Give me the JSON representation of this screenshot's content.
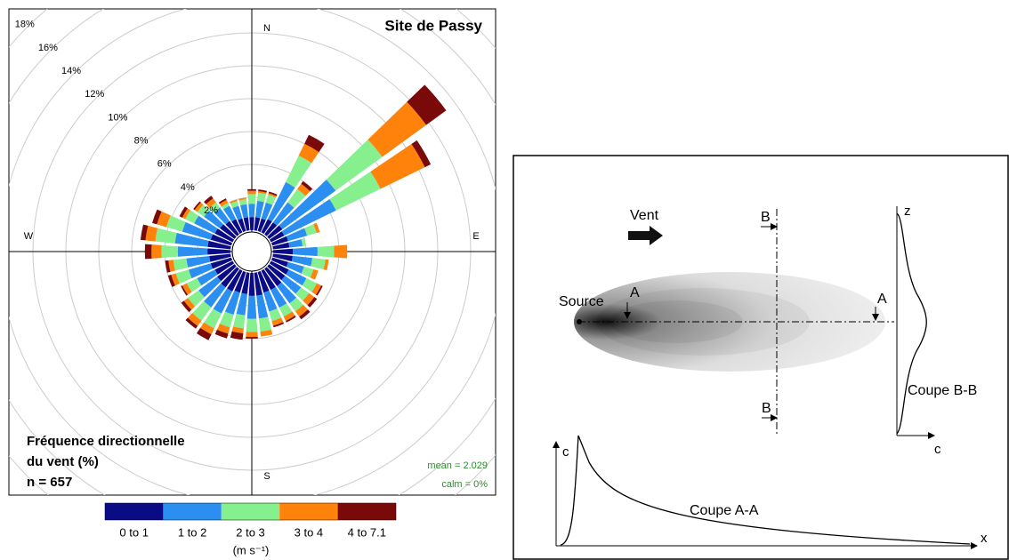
{
  "chart_data": {
    "type": "windrose",
    "title": "Site de Passy",
    "x": [
      0,
      10,
      20,
      30,
      40,
      50,
      60,
      70,
      80,
      90,
      100,
      110,
      120,
      130,
      140,
      150,
      160,
      170,
      180,
      190,
      200,
      210,
      220,
      230,
      240,
      250,
      260,
      270,
      280,
      290,
      300,
      310,
      320,
      330,
      340,
      350
    ],
    "compass_labels": [
      "N",
      "E",
      "S",
      "W"
    ],
    "series": [
      {
        "name": "0 to 1",
        "color": "#0b0b86",
        "values": [
          0.8,
          0.8,
          0.8,
          0.9,
          0.9,
          1.0,
          0.9,
          1.0,
          1.0,
          1.2,
          1.2,
          1.0,
          1.2,
          1.2,
          1.3,
          1.3,
          1.3,
          1.4,
          1.4,
          1.3,
          1.3,
          1.4,
          1.4,
          1.3,
          1.2,
          1.3,
          1.3,
          1.4,
          1.4,
          1.3,
          1.2,
          1.1,
          1.0,
          0.9,
          0.8,
          0.8
        ]
      },
      {
        "name": "1 to 2",
        "color": "#2a8ff0",
        "values": [
          0.8,
          1.0,
          1.0,
          2.5,
          1.5,
          4.0,
          3.5,
          1.2,
          0.8,
          1.5,
          1.2,
          1.0,
          1.2,
          1.2,
          1.3,
          1.2,
          1.2,
          1.4,
          1.4,
          1.3,
          1.4,
          1.5,
          1.5,
          1.4,
          1.2,
          1.4,
          1.4,
          1.8,
          2.0,
          1.8,
          1.4,
          1.2,
          1.0,
          0.9,
          0.8,
          0.8
        ]
      },
      {
        "name": "2 to 3",
        "color": "#86f08e",
        "values": [
          0.6,
          0.5,
          0.5,
          1.8,
          1.0,
          3.5,
          3.0,
          0.6,
          0.2,
          1.0,
          0.8,
          0.6,
          0.7,
          0.6,
          0.6,
          0.6,
          0.6,
          0.8,
          0.8,
          0.8,
          0.8,
          1.0,
          1.0,
          0.8,
          0.7,
          0.8,
          0.8,
          1.0,
          1.2,
          1.0,
          0.6,
          0.5,
          0.4,
          0.2,
          0.3,
          0.3
        ]
      },
      {
        "name": "3 to 4",
        "color": "#ff820a",
        "values": [
          0.2,
          0.1,
          0.1,
          0.8,
          0.4,
          3.3,
          3.0,
          0.2,
          0,
          0.8,
          0.2,
          0.3,
          0.3,
          0.4,
          0.4,
          0.3,
          0.3,
          0.3,
          0.3,
          0.3,
          0.4,
          0.4,
          0.4,
          0.3,
          0.3,
          0.3,
          0.3,
          0.6,
          0.6,
          0.6,
          0.2,
          0.2,
          0.3,
          0.2,
          0.1,
          0.1
        ]
      },
      {
        "name": "4 to 7.1",
        "color": "#7a0a0a",
        "values": [
          0.1,
          0.1,
          0.1,
          0.6,
          0.2,
          1.5,
          0.4,
          0,
          0,
          0,
          0,
          0,
          0.1,
          0.2,
          0.2,
          0.1,
          0.1,
          0,
          0.1,
          0.4,
          0.3,
          0.4,
          0.2,
          0.2,
          0.1,
          0.2,
          0.2,
          0.4,
          0.3,
          0.3,
          0.2,
          0.1,
          0.2,
          0.1,
          0,
          0
        ]
      }
    ],
    "ylim": [
      0,
      20
    ],
    "yticks": [
      {
        "value": 2,
        "label": "2%"
      },
      {
        "value": 4,
        "label": "4%"
      },
      {
        "value": 6,
        "label": "6%"
      },
      {
        "value": 8,
        "label": "8%"
      },
      {
        "value": 10,
        "label": "10%"
      },
      {
        "value": 12,
        "label": "12%"
      },
      {
        "value": 14,
        "label": "14%"
      },
      {
        "value": 16,
        "label": "16%"
      },
      {
        "value": 18,
        "label": "18%"
      }
    ],
    "grid": true,
    "annotations": [
      "Fréquence directionnelle",
      "du vent  (%)",
      "n = 657"
    ],
    "stats": [
      "mean = 2.029",
      "calm = 0%"
    ],
    "legend_title": "(m s⁻¹)"
  },
  "diagram": {
    "wind": "Vent",
    "source": "Source",
    "section_b": [
      "B",
      "B"
    ],
    "section_a": [
      "A",
      "A"
    ],
    "profile_b": {
      "title": "Coupe B-B",
      "y_axis": "z",
      "x_axis": "c"
    },
    "profile_a": {
      "title": "Coupe A-A",
      "y_axis": "c",
      "x_axis": "x"
    }
  }
}
